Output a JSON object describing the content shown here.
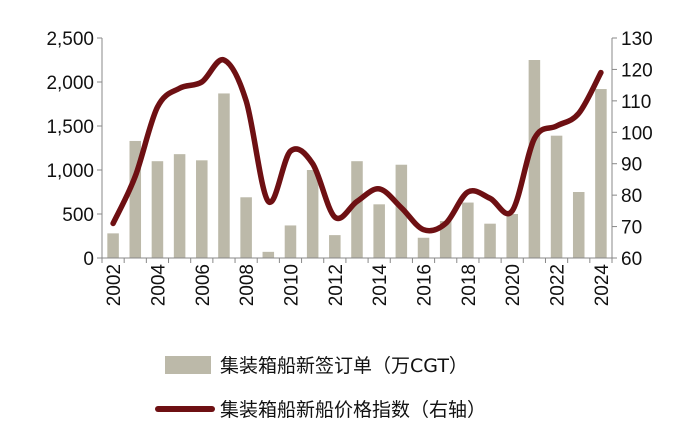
{
  "chart_data": {
    "type": "bar+line",
    "x": [
      2002,
      2003,
      2004,
      2005,
      2006,
      2007,
      2008,
      2009,
      2010,
      2011,
      2012,
      2013,
      2014,
      2015,
      2016,
      2017,
      2018,
      2019,
      2020,
      2021,
      2022,
      2023,
      2024
    ],
    "x_tick_labels": [
      "2002",
      "2004",
      "2006",
      "2008",
      "2010",
      "2012",
      "2014",
      "2016",
      "2018",
      "2020",
      "2022",
      "2024"
    ],
    "series": [
      {
        "name": "集装箱船新签订单（万CGT）",
        "type": "bar",
        "axis": "left",
        "color": "#bcb9a9",
        "values": [
          280,
          1330,
          1100,
          1180,
          1110,
          1870,
          690,
          70,
          370,
          1000,
          260,
          1100,
          610,
          1060,
          230,
          420,
          630,
          390,
          500,
          2250,
          1390,
          750,
          1920
        ]
      },
      {
        "name": "集装箱船新船价格指数（右轴）",
        "type": "line",
        "axis": "right",
        "color": "#6e1013",
        "values": [
          71,
          86,
          108,
          114,
          116,
          123,
          110,
          78,
          94,
          90,
          73,
          78,
          82,
          76,
          69,
          71,
          81,
          79,
          75,
          98,
          102,
          106,
          119
        ]
      }
    ],
    "left_axis": {
      "min": 0,
      "max": 2500,
      "ticks": [
        0,
        500,
        1000,
        1500,
        2000,
        2500
      ],
      "tick_labels": [
        "0",
        "500",
        "1,000",
        "1,500",
        "2,000",
        "2,500"
      ]
    },
    "right_axis": {
      "min": 60,
      "max": 130,
      "ticks": [
        60,
        70,
        80,
        90,
        100,
        110,
        120,
        130
      ],
      "tick_labels": [
        "60",
        "70",
        "80",
        "90",
        "100",
        "110",
        "120",
        "130"
      ]
    },
    "legend": [
      {
        "label": "集装箱船新签订单（万CGT）",
        "marker": "bar"
      },
      {
        "label": "集装箱船新船价格指数（右轴）",
        "marker": "line"
      }
    ],
    "legend_position": "bottom",
    "grid": false,
    "title": ""
  }
}
